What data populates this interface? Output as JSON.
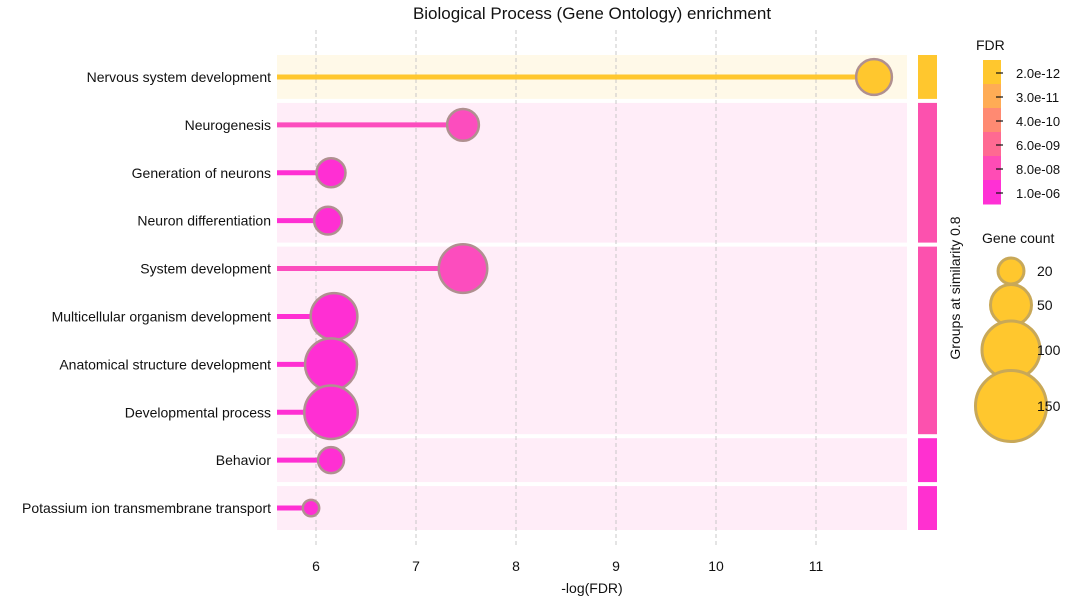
{
  "chart_data": {
    "type": "lollipop",
    "title": "Biological Process (Gene Ontology) enrichment",
    "xlabel": "-log(FDR)",
    "xlim": [
      5.6,
      11.92
    ],
    "xticks": [
      6,
      7,
      8,
      9,
      10,
      11
    ],
    "grid": "vertical-dashed",
    "terms": [
      {
        "label": "Nervous system development",
        "value": 11.58,
        "gene_count": 38,
        "color": "#FFC72E",
        "group": 1
      },
      {
        "label": "Neurogenesis",
        "value": 7.47,
        "gene_count": 30,
        "color": "#FC4DBE",
        "group": 2
      },
      {
        "label": "Generation of neurons",
        "value": 6.15,
        "gene_count": 25,
        "color": "#FF2FD3",
        "group": 2
      },
      {
        "label": "Neuron differentiation",
        "value": 6.12,
        "gene_count": 23,
        "color": "#FF2FD3",
        "group": 2
      },
      {
        "label": "System development",
        "value": 7.47,
        "gene_count": 70,
        "color": "#FC4DBE",
        "group": 3
      },
      {
        "label": "Multicellular organism development",
        "value": 6.18,
        "gene_count": 65,
        "color": "#FF2FD3",
        "group": 3
      },
      {
        "label": "Anatomical structure development",
        "value": 6.15,
        "gene_count": 80,
        "color": "#FF2FD3",
        "group": 3
      },
      {
        "label": "Developmental process",
        "value": 6.15,
        "gene_count": 85,
        "color": "#FF2FD3",
        "group": 3
      },
      {
        "label": "Behavior",
        "value": 6.15,
        "gene_count": 20,
        "color": "#FF2FD3",
        "group": 4
      },
      {
        "label": "Potassium ion transmembrane transport",
        "value": 5.95,
        "gene_count": 8,
        "color": "#FF2FD3",
        "group": 5
      }
    ],
    "groups": [
      {
        "id": 1,
        "bg": "#FFF9E8",
        "bar": "#FFC72E"
      },
      {
        "id": 2,
        "bg": "#FFEDF8",
        "bar": "#FC51AE"
      },
      {
        "id": 3,
        "bg": "#FFEDF8",
        "bar": "#FC51AE"
      },
      {
        "id": 4,
        "bg": "#FFEDF8",
        "bar": "#FF30D0"
      },
      {
        "id": 5,
        "bg": "#FFEDF8",
        "bar": "#FF30D0"
      }
    ],
    "group_axis_label": "Groups at similarity 0.8",
    "fdr_legend": {
      "title": "FDR",
      "ticks": [
        "2.0e-12",
        "3.0e-11",
        "4.0e-10",
        "6.0e-09",
        "8.0e-08",
        "1.0e-06"
      ],
      "colors": [
        "#FFC72E",
        "#FFAC55",
        "#FF8A72",
        "#FF6A92",
        "#FF4CB5",
        "#FF30D5"
      ]
    },
    "size_legend": {
      "title": "Gene count",
      "entries": [
        20,
        50,
        100,
        150
      ],
      "fill": "#FFC72E",
      "stroke": "#C8A858"
    },
    "marker_stroke": "#B09090"
  }
}
